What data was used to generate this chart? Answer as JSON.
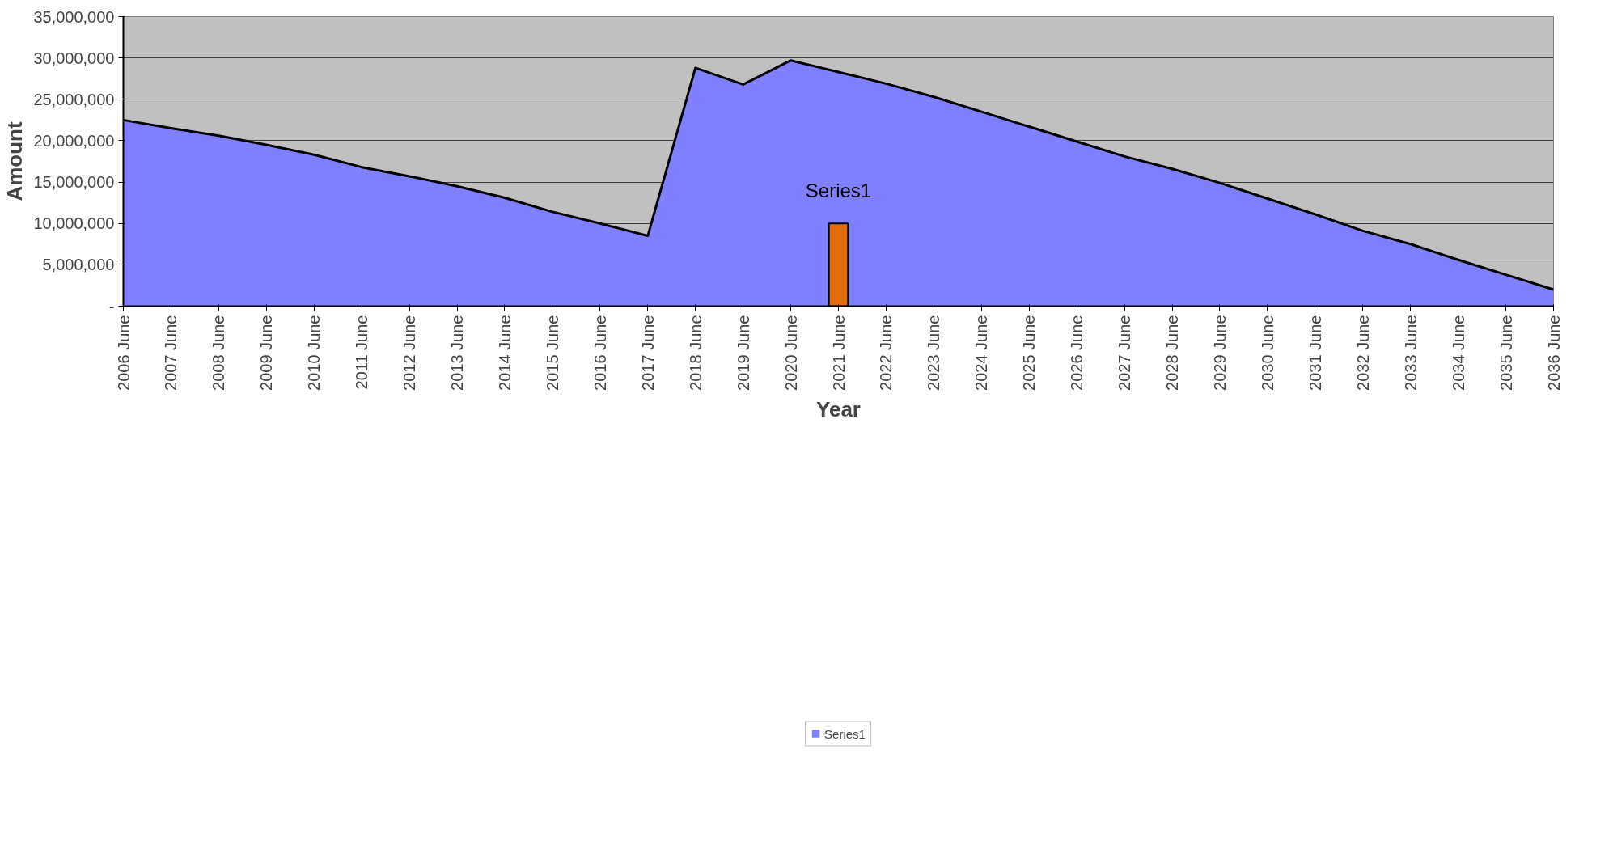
{
  "chart_data": {
    "type": "area",
    "xlabel": "Year",
    "ylabel": "Amount",
    "categories": [
      "2006 June",
      "2007 June",
      "2008 June",
      "2009 June",
      "2010 June",
      "2011 June",
      "2012 June",
      "2013 June",
      "2014 June",
      "2015 June",
      "2016 June",
      "2017 June",
      "2018 June",
      "2019 June",
      "2020 June",
      "2021 June",
      "2022 June",
      "2023 June",
      "2024 June",
      "2025 June",
      "2026 June",
      "2027 June",
      "2028 June",
      "2029 June",
      "2030 June",
      "2031 June",
      "2032 June",
      "2033 June",
      "2034 June",
      "2035 June",
      "2036 June"
    ],
    "series": [
      {
        "name": "Series1",
        "color": "#8080ff",
        "values": [
          22500000,
          21500000,
          20600000,
          19500000,
          18300000,
          16800000,
          15700000,
          14500000,
          13100000,
          11400000,
          10000000,
          8500000,
          28800000,
          26800000,
          29700000,
          28300000,
          26900000,
          25300000,
          23500000,
          21700000,
          19900000,
          18100000,
          16600000,
          14900000,
          13000000,
          11100000,
          9100000,
          7500000,
          5600000,
          3800000,
          2000000
        ]
      },
      {
        "type": "bar",
        "color": "#e46c0a",
        "values": [
          null,
          null,
          null,
          null,
          null,
          null,
          null,
          null,
          null,
          null,
          null,
          null,
          null,
          null,
          null,
          10000000,
          null,
          null,
          null,
          null,
          null,
          null,
          null,
          null,
          null,
          null,
          null,
          null,
          null,
          null,
          null
        ]
      }
    ],
    "annotations": [
      "Series1"
    ],
    "ylim": [
      0,
      35000000
    ],
    "yticks": [
      {
        "value": 0,
        "label": "-"
      },
      {
        "value": 5000000,
        "label": "5,000,000"
      },
      {
        "value": 10000000,
        "label": "10,000,000"
      },
      {
        "value": 15000000,
        "label": "15,000,000"
      },
      {
        "value": 20000000,
        "label": "20,000,000"
      },
      {
        "value": 25000000,
        "label": "25,000,000"
      },
      {
        "value": 30000000,
        "label": "30,000,000"
      },
      {
        "value": 35000000,
        "label": "35,000,000"
      }
    ],
    "grid": "y",
    "legend": "bottom"
  }
}
